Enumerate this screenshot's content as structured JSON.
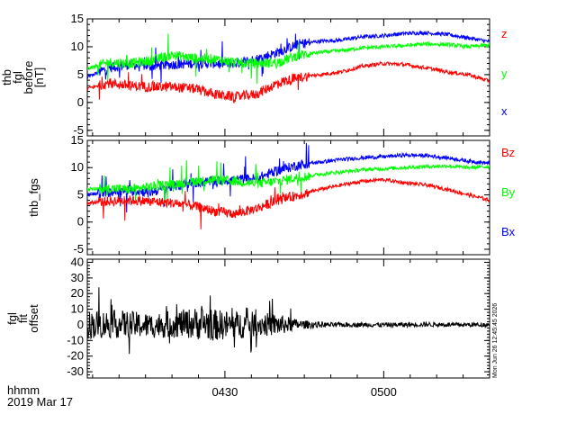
{
  "footer": {
    "time_format": "hhmm",
    "date": "2019 Mar 17"
  },
  "stamp": "Mon Jun 26 12:45:45 2026",
  "x_axis": {
    "tick_labels": [
      "0430",
      "0500"
    ],
    "tick_times_min": [
      270,
      300
    ]
  },
  "colors": {
    "red": "#ff0000",
    "green": "#00ff00",
    "blue": "#0000ff",
    "black": "#000000"
  },
  "chart_data": [
    {
      "type": "line",
      "ylabel": [
        "thb",
        "fgl",
        "before",
        "[nT]"
      ],
      "ylim": [
        -6,
        15
      ],
      "yticks": [
        -5,
        0,
        5,
        10,
        15
      ],
      "xlim": [
        244,
        320
      ],
      "legend": [
        "z",
        "y",
        "x"
      ],
      "series": [
        {
          "name": "x",
          "color": "blue",
          "x": [
            244,
            248,
            252,
            256,
            260,
            264,
            268,
            272,
            276,
            280,
            284,
            288,
            292,
            296,
            300,
            304,
            308,
            312,
            316,
            320
          ],
          "y": [
            4.5,
            6.2,
            6.8,
            6.5,
            6.8,
            7.0,
            7.0,
            7.0,
            7.8,
            9.0,
            10.5,
            11.0,
            11.2,
            11.8,
            12.0,
            12.4,
            12.5,
            12.2,
            11.6,
            10.9
          ]
        },
        {
          "name": "y",
          "color": "green",
          "x": [
            244,
            248,
            252,
            256,
            260,
            264,
            268,
            272,
            276,
            280,
            284,
            288,
            292,
            296,
            300,
            304,
            308,
            312,
            316,
            320
          ],
          "y": [
            6.0,
            7.2,
            7.0,
            7.5,
            8.5,
            8.0,
            7.8,
            7.2,
            7.0,
            7.2,
            8.5,
            9.0,
            9.3,
            9.8,
            10.0,
            10.2,
            10.5,
            10.4,
            10.0,
            10.3
          ]
        },
        {
          "name": "z",
          "color": "red",
          "x": [
            244,
            248,
            252,
            256,
            260,
            264,
            268,
            272,
            276,
            280,
            284,
            288,
            292,
            296,
            300,
            304,
            308,
            312,
            316,
            320
          ],
          "y": [
            2.5,
            3.5,
            3.0,
            2.8,
            2.8,
            2.5,
            1.5,
            1.0,
            1.5,
            3.5,
            4.5,
            5.0,
            5.5,
            6.5,
            7.0,
            6.8,
            6.2,
            5.5,
            5.0,
            3.8
          ]
        }
      ]
    },
    {
      "type": "line",
      "ylabel": [
        "thb_fgs"
      ],
      "ylim": [
        -6,
        15
      ],
      "yticks": [
        -5,
        0,
        5,
        10,
        15
      ],
      "xlim": [
        244,
        320
      ],
      "legend": [
        "Bz",
        "By",
        "Bx"
      ],
      "series": [
        {
          "name": "Bx",
          "color": "blue",
          "x": [
            244,
            248,
            252,
            256,
            260,
            264,
            268,
            272,
            276,
            280,
            284,
            288,
            292,
            296,
            300,
            304,
            308,
            312,
            316,
            320
          ],
          "y": [
            5.0,
            5.5,
            5.8,
            5.5,
            6.5,
            7.2,
            7.5,
            7.8,
            8.0,
            9.5,
            10.5,
            11.0,
            11.5,
            11.8,
            12.0,
            12.3,
            12.2,
            11.8,
            11.2,
            10.8
          ]
        },
        {
          "name": "By",
          "color": "green",
          "x": [
            244,
            248,
            252,
            256,
            260,
            264,
            268,
            272,
            276,
            280,
            284,
            288,
            292,
            296,
            300,
            304,
            308,
            312,
            316,
            320
          ],
          "y": [
            6.0,
            6.2,
            6.0,
            6.5,
            7.0,
            7.5,
            7.8,
            7.5,
            7.0,
            7.5,
            8.2,
            8.8,
            9.2,
            9.6,
            9.8,
            10.0,
            10.2,
            10.3,
            10.0,
            10.2
          ]
        },
        {
          "name": "Bz",
          "color": "red",
          "x": [
            244,
            248,
            252,
            256,
            260,
            264,
            268,
            272,
            276,
            280,
            284,
            288,
            292,
            296,
            300,
            304,
            308,
            312,
            316,
            320
          ],
          "y": [
            3.5,
            3.8,
            4.0,
            3.8,
            3.5,
            3.0,
            2.0,
            1.5,
            2.5,
            4.0,
            5.0,
            6.0,
            6.8,
            7.5,
            7.8,
            7.2,
            6.8,
            6.0,
            5.0,
            4.0
          ]
        }
      ]
    },
    {
      "type": "line",
      "ylabel": [
        "fgl",
        "fit",
        "offset"
      ],
      "ylim": [
        -34,
        42
      ],
      "yticks": [
        -30,
        -20,
        -10,
        0,
        10,
        20,
        30,
        40
      ],
      "xlim": [
        244,
        320
      ],
      "series": [
        {
          "color": "black",
          "x": [
            244,
            250,
            256,
            262,
            266,
            268,
            272,
            276,
            280,
            284,
            290,
            296,
            302,
            308,
            314,
            320
          ],
          "y": [
            0.0,
            0.5,
            -0.5,
            0.8,
            1.0,
            0.0,
            -0.3,
            0.4,
            0.0,
            0.2,
            0.0,
            0.1,
            0.0,
            0.3,
            0.0,
            0.2
          ],
          "noise_amplitude": [
            9,
            9,
            8,
            9,
            11,
            10,
            9,
            8,
            7,
            3,
            1.5,
            1.5,
            1.5,
            1.5,
            1.5,
            1.5
          ]
        }
      ]
    }
  ]
}
